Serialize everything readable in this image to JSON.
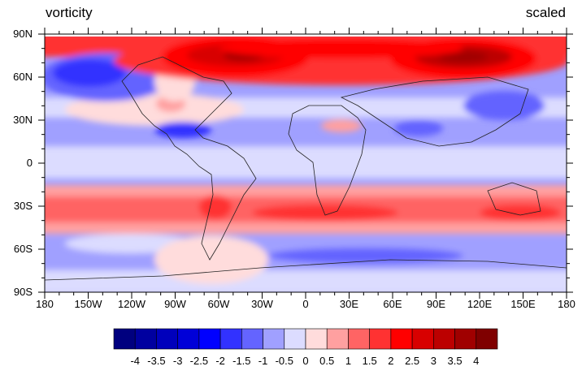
{
  "title_left": "vorticity",
  "title_right": "scaled",
  "y_axis_labels": [
    "90N",
    "60N",
    "30N",
    "0",
    "30S",
    "60S",
    "90S"
  ],
  "x_axis_labels": [
    "180",
    "150W",
    "120W",
    "90W",
    "60W",
    "30W",
    "0",
    "30E",
    "60E",
    "90E",
    "120E",
    "150E",
    "180"
  ],
  "colorbar": {
    "labels": [
      "-4",
      "-3.5",
      "-3",
      "-2.5",
      "-2",
      "-1.5",
      "-1",
      "-0.5",
      "0",
      "0.5",
      "1",
      "1.5",
      "2",
      "2.5",
      "3",
      "3.5",
      "4"
    ],
    "colors": [
      "#00007f",
      "#0000a0",
      "#0000bc",
      "#0000d8",
      "#0000ff",
      "#3232ff",
      "#6464ff",
      "#a0a0ff",
      "#dcdcff",
      "#ffdcdc",
      "#ffa0a0",
      "#ff6464",
      "#ff3232",
      "#ff0000",
      "#d80000",
      "#bc0000",
      "#a00000",
      "#7f0000"
    ]
  }
}
